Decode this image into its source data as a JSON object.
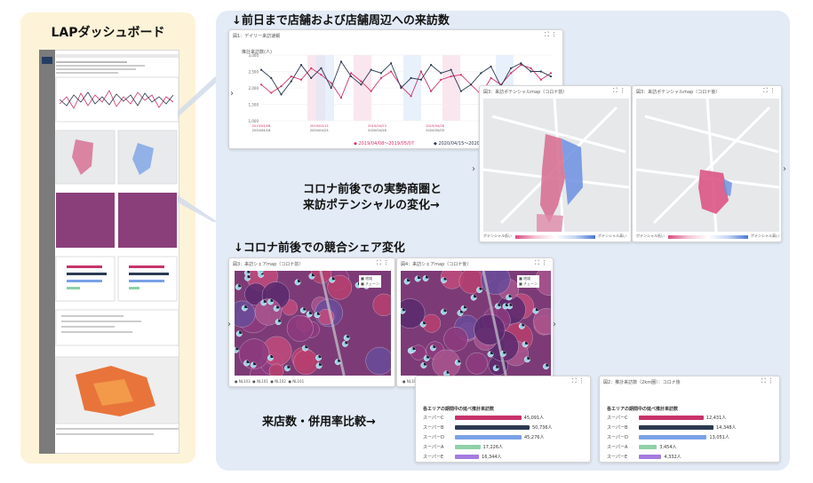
{
  "left": {
    "title": "LAPダッシュボード"
  },
  "headings": {
    "visits": "↓前日まで店舗および店舗周辺への来訪数",
    "trade_area": "コロナ前後での実勢商圏と",
    "trade_area2": "来訪ポテンシャルの変化→",
    "share": "↓コロナ前後での競合シェア変化",
    "compare": "来店数・併用率比較→"
  },
  "daily_card": {
    "title": "図1：デイリー来訪速報",
    "ylabel": "推計来訪数(人)",
    "legend1": "2019/04/08〜2019/05/07",
    "legend2": "2020/04/15〜2020/05/14"
  },
  "trade_cards": [
    {
      "title": "図3：来訪ポテンシャルmap（コロナ前）",
      "legend_left": "ポテンシャル低い",
      "legend_right": "ポテンシャル高い"
    },
    {
      "title": "図3：来訪ポテンシャルmap（コロナ後）",
      "legend_left": "ポテンシャル低い",
      "legend_right": "ポテンシャル高い"
    }
  ],
  "share_cards": [
    {
      "title": "図3：来訪シェアmap（コロナ前）",
      "legend": [
        "地域",
        "チェーン"
      ],
      "tags": [
        "NL103",
        "NL101",
        "NL102",
        "NL101"
      ]
    },
    {
      "title": "図4：来訪シェアmap（コロナ後）",
      "legend": [
        "地域",
        "チェーン"
      ],
      "tags": [
        "NL103",
        "NL101",
        "NL102",
        "NL101"
      ]
    }
  ],
  "bar_cards": [
    {
      "title": "",
      "subtitle": "各エリアの期間中の延べ推計来訪数"
    },
    {
      "title": "図2：推計来訪数（2km圏）：コロナ後",
      "subtitle": "各エリアの期間中の延べ推計来訪数"
    }
  ],
  "chart_data": [
    {
      "type": "line",
      "title": "図1：デイリー来訪速報",
      "ylabel": "推計来訪数(人)",
      "ylim": [
        1000,
        3000
      ],
      "yticks": [
        "3,000",
        "2,500",
        "2,000",
        "1,500",
        "1,000"
      ],
      "xticks_top": [
        "2019/04/08",
        "2019/04/13",
        "2019/04/23",
        "2019/04/28",
        "2019/05/03",
        "2019/05/08"
      ],
      "xticks_bottom": [
        "2020/04/18",
        "2020/04/23",
        "2020/04/28",
        "2020/05/03",
        "2020/05/08",
        "2020/05/14"
      ],
      "series": [
        {
          "name": "2019/04/08〜2019/05/07",
          "color": "#d1336b",
          "values": [
            2100,
            1850,
            2050,
            2350,
            2250,
            2600,
            2400,
            2150,
            1700,
            2450,
            2200,
            1900,
            2300,
            2500,
            2050,
            1750,
            2500,
            1900,
            2250,
            2350,
            2400,
            2100,
            1800,
            2300,
            2100,
            2450,
            2700,
            2600,
            2250,
            2450
          ]
        },
        {
          "name": "2020/04/15〜2020/05/14",
          "color": "#2b3a52",
          "values": [
            2550,
            2300,
            1800,
            2200,
            2700,
            2300,
            2600,
            2000,
            2800,
            2350,
            2100,
            2550,
            2450,
            2750,
            2000,
            2300,
            2250,
            2700,
            2450,
            2550,
            1900,
            2100,
            2450,
            2650,
            2050,
            2600,
            2750,
            2500,
            2500,
            2350
          ]
        }
      ]
    },
    {
      "type": "bar",
      "title": "各エリアの期間中の延べ推計来訪数",
      "categories": [
        "スーパーC",
        "スーパーB",
        "スーパーD",
        "スーパーA",
        "スーパーE"
      ],
      "values": [
        45091,
        50736,
        45276,
        17226,
        16344
      ],
      "labels": [
        "45,091人",
        "50,736人",
        "45,276人",
        "17,226人",
        "16,344人"
      ],
      "colors": [
        "#c8336b",
        "#2b3a52",
        "#7aa2e6",
        "#8ed1a8",
        "#a57be0"
      ]
    },
    {
      "type": "bar",
      "title": "各エリアの期間中の延べ推計来訪数",
      "categories": [
        "スーパーC",
        "スーパーB",
        "スーパーD",
        "スーパーA",
        "スーパーE"
      ],
      "values": [
        12431,
        14348,
        13051,
        3454,
        4332
      ],
      "labels": [
        "12,431人",
        "14,348人",
        "13,051人",
        "3,454人",
        "4,332人"
      ],
      "colors": [
        "#c8336b",
        "#2b3a52",
        "#7aa2e6",
        "#8ed1a8",
        "#a57be0"
      ]
    }
  ]
}
